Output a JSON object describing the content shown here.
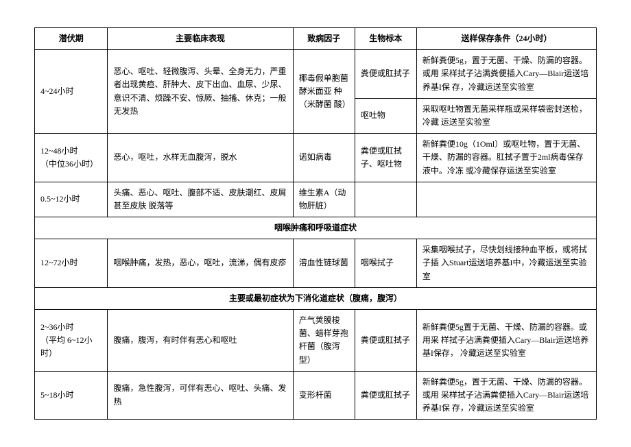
{
  "headers": {
    "c1": "潜伏期",
    "c2": "主要临床表现",
    "c3": "致病因子",
    "c4": "生物标本",
    "c5": "送样保存条件（24小时）"
  },
  "rows": {
    "r1": {
      "period": "4~24小时",
      "symptoms": "恶心、呕吐、轻微腹泻、头晕、全身无力，严重者出现黄疸、肝肿大、皮下出血、血尿、少尿、意识不清、烦躁不安、惊厥、抽搐、休克；一般无发热",
      "agent": "椰毒假单胞菌酵米面亚 种（米酵菌 酸）",
      "spec1": "粪便或肛拭子",
      "stor1": "新鲜粪便5g，置于无菌、干燥、防漏的容器。或用 采样拭子沾满粪便插入Cary—Blair运送培养基I保 存，冷藏运送至实验室",
      "spec2": "呕吐物",
      "stor2": "采取呕吐物置无菌采样瓶或采样袋密封送检，冷藏 运送至实验室"
    },
    "r2": {
      "period": "12~48小时\n（中位36小时）",
      "symptoms": "恶心，呕吐，水样无血腹泻，脱水",
      "agent": "诺如病毒",
      "spec": "粪便或肛拭子、呕吐物",
      "stor": "新鲜粪便10g（1Oml）或呕吐物，置于无菌、干燥、防漏的容器。肛拭子置于2ml病毒保存液中。冷冻 或冷藏保存运送至实验室"
    },
    "r3": {
      "period": "0.5~12小时",
      "symptoms": "头痛、恶心、呕吐、腹部不适、皮肤潮红、皮屑甚至皮肤 脱落等",
      "agent": "维生素A（动物肝脏）",
      "spec": "",
      "stor": ""
    },
    "sec1": "咽喉肿痛和呼吸道症状",
    "r4": {
      "period": "12~72小时",
      "symptoms": "咽喉肿痛，发热，恶心，呕吐，流涕，偶有皮疹",
      "agent": "溶血性链球菌",
      "spec": "咽喉拭子",
      "stor": "采集咽喉拭子，尽快划线接种血平板，或将拭子插 入Stuart运送培养基I中，冷藏运送至实验室"
    },
    "sec2": "主要或最初症状为下消化道症状（腹痛，腹泻）",
    "r5": {
      "period": "2~36小时\n（平均 6~12小时）",
      "symptoms": "腹痛，腹泻，有时伴有恶心和呕吐",
      "agent": "产气荚膜梭菌、蜡样芽孢杆菌（腹泻型）",
      "spec": "粪便或肛拭子",
      "stor": "新鲜粪便5g置于无菌、干燥、防漏的容器。或用采 样拭子沾满粪便插入Cary—Blair运送培养基I保存， 冷藏运送至实验室"
    },
    "r6": {
      "period": "5~18小时",
      "symptoms": "腹痛，急性腹泻，可伴有恶心、呕吐、头痛、发热",
      "agent": "变形杆菌",
      "spec": "粪便或肛拭子",
      "stor": "新鲜粪便5g，置于无菌、干燥、防漏的容器。或用 采样拭子沾满粪便插入Cary—Blair运送培养基I保 存，冷藏运送至实验室"
    }
  }
}
